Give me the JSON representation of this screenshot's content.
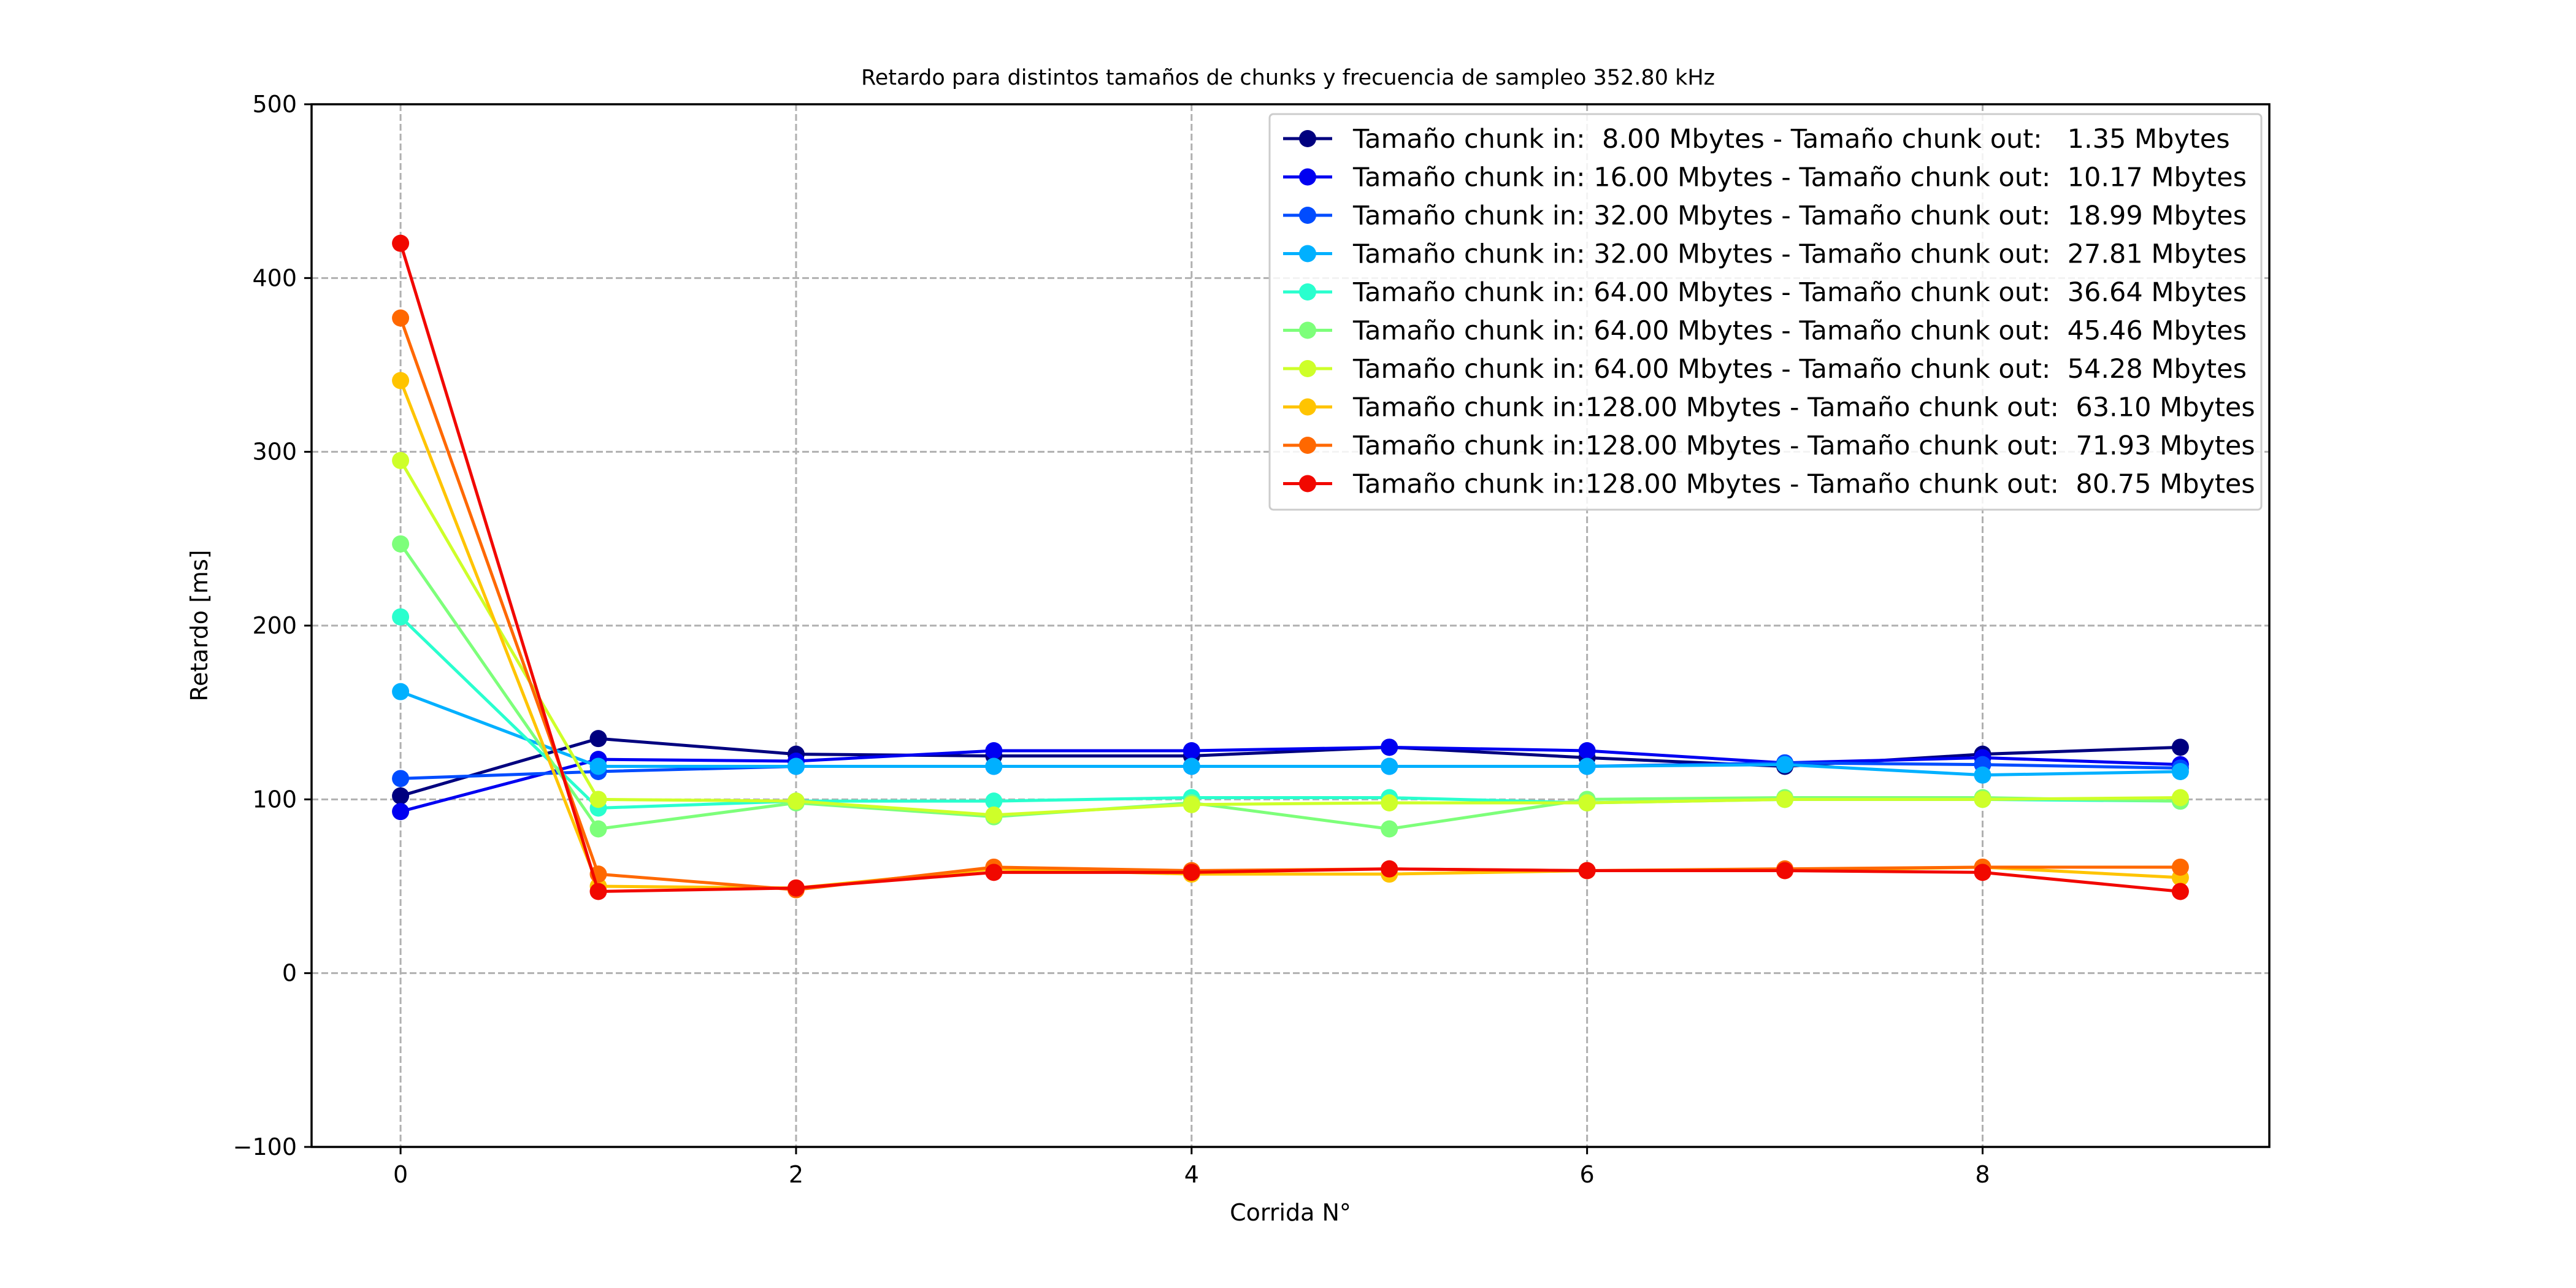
{
  "chart_data": {
    "type": "line",
    "title": "Retardo para distintos tamaños de chunks y frecuencia de sampleo 352.80 kHz",
    "xlabel": "Corrida N°",
    "ylabel": "Retardo [ms]",
    "xlim": [
      -0.45,
      9.45
    ],
    "ylim": [
      -100,
      500
    ],
    "xticks": [
      0,
      2,
      4,
      6,
      8
    ],
    "xtick_labels": [
      "0",
      "2",
      "4",
      "6",
      "8"
    ],
    "yticks": [
      -100,
      0,
      100,
      200,
      300,
      400,
      500
    ],
    "ytick_labels": [
      "−100",
      "0",
      "100",
      "200",
      "300",
      "400",
      "500"
    ],
    "grid": true,
    "legend_position": "top-right",
    "x": [
      0,
      1,
      2,
      3,
      4,
      5,
      6,
      7,
      8,
      9
    ],
    "series": [
      {
        "name": "Tamaño chunk in:  8.00 Mbytes - Tamaño chunk out:   1.35 Mbytes",
        "color": "#00007f",
        "values": [
          102,
          135,
          126,
          125,
          125,
          130,
          124,
          119,
          126,
          130
        ]
      },
      {
        "name": "Tamaño chunk in: 16.00 Mbytes - Tamaño chunk out:  10.17 Mbytes",
        "color": "#0000f1",
        "values": [
          93,
          123,
          122,
          128,
          128,
          130,
          128,
          121,
          124,
          120
        ]
      },
      {
        "name": "Tamaño chunk in: 32.00 Mbytes - Tamaño chunk out:  18.99 Mbytes",
        "color": "#004cff",
        "values": [
          112,
          116,
          119,
          119,
          119,
          119,
          119,
          121,
          120,
          118
        ]
      },
      {
        "name": "Tamaño chunk in: 32.00 Mbytes - Tamaño chunk out:  27.81 Mbytes",
        "color": "#00b0ff",
        "values": [
          162,
          119,
          119,
          119,
          119,
          119,
          119,
          120,
          114,
          116
        ]
      },
      {
        "name": "Tamaño chunk in: 64.00 Mbytes - Tamaño chunk out:  36.64 Mbytes",
        "color": "#29ffce",
        "values": [
          205,
          95,
          99,
          99,
          101,
          101,
          98,
          100,
          100,
          99
        ]
      },
      {
        "name": "Tamaño chunk in: 64.00 Mbytes - Tamaño chunk out:  45.46 Mbytes",
        "color": "#7dff7a",
        "values": [
          247,
          83,
          98,
          90,
          98,
          83,
          100,
          101,
          101,
          99
        ]
      },
      {
        "name": "Tamaño chunk in: 64.00 Mbytes - Tamaño chunk out:  54.28 Mbytes",
        "color": "#ceff29",
        "values": [
          295,
          100,
          99,
          91,
          97,
          98,
          98,
          100,
          100,
          101
        ]
      },
      {
        "name": "Tamaño chunk in:128.00 Mbytes - Tamaño chunk out:  63.10 Mbytes",
        "color": "#ffc400",
        "values": [
          341,
          50,
          49,
          60,
          57,
          57,
          59,
          59,
          61,
          55
        ]
      },
      {
        "name": "Tamaño chunk in:128.00 Mbytes - Tamaño chunk out:  71.93 Mbytes",
        "color": "#ff6800",
        "values": [
          377,
          57,
          48,
          61,
          59,
          60,
          59,
          60,
          61,
          61
        ]
      },
      {
        "name": "Tamaño chunk in:128.00 Mbytes - Tamaño chunk out:  80.75 Mbytes",
        "color": "#f10800",
        "values": [
          420,
          47,
          49,
          58,
          58,
          60,
          59,
          59,
          58,
          47
        ]
      }
    ]
  }
}
